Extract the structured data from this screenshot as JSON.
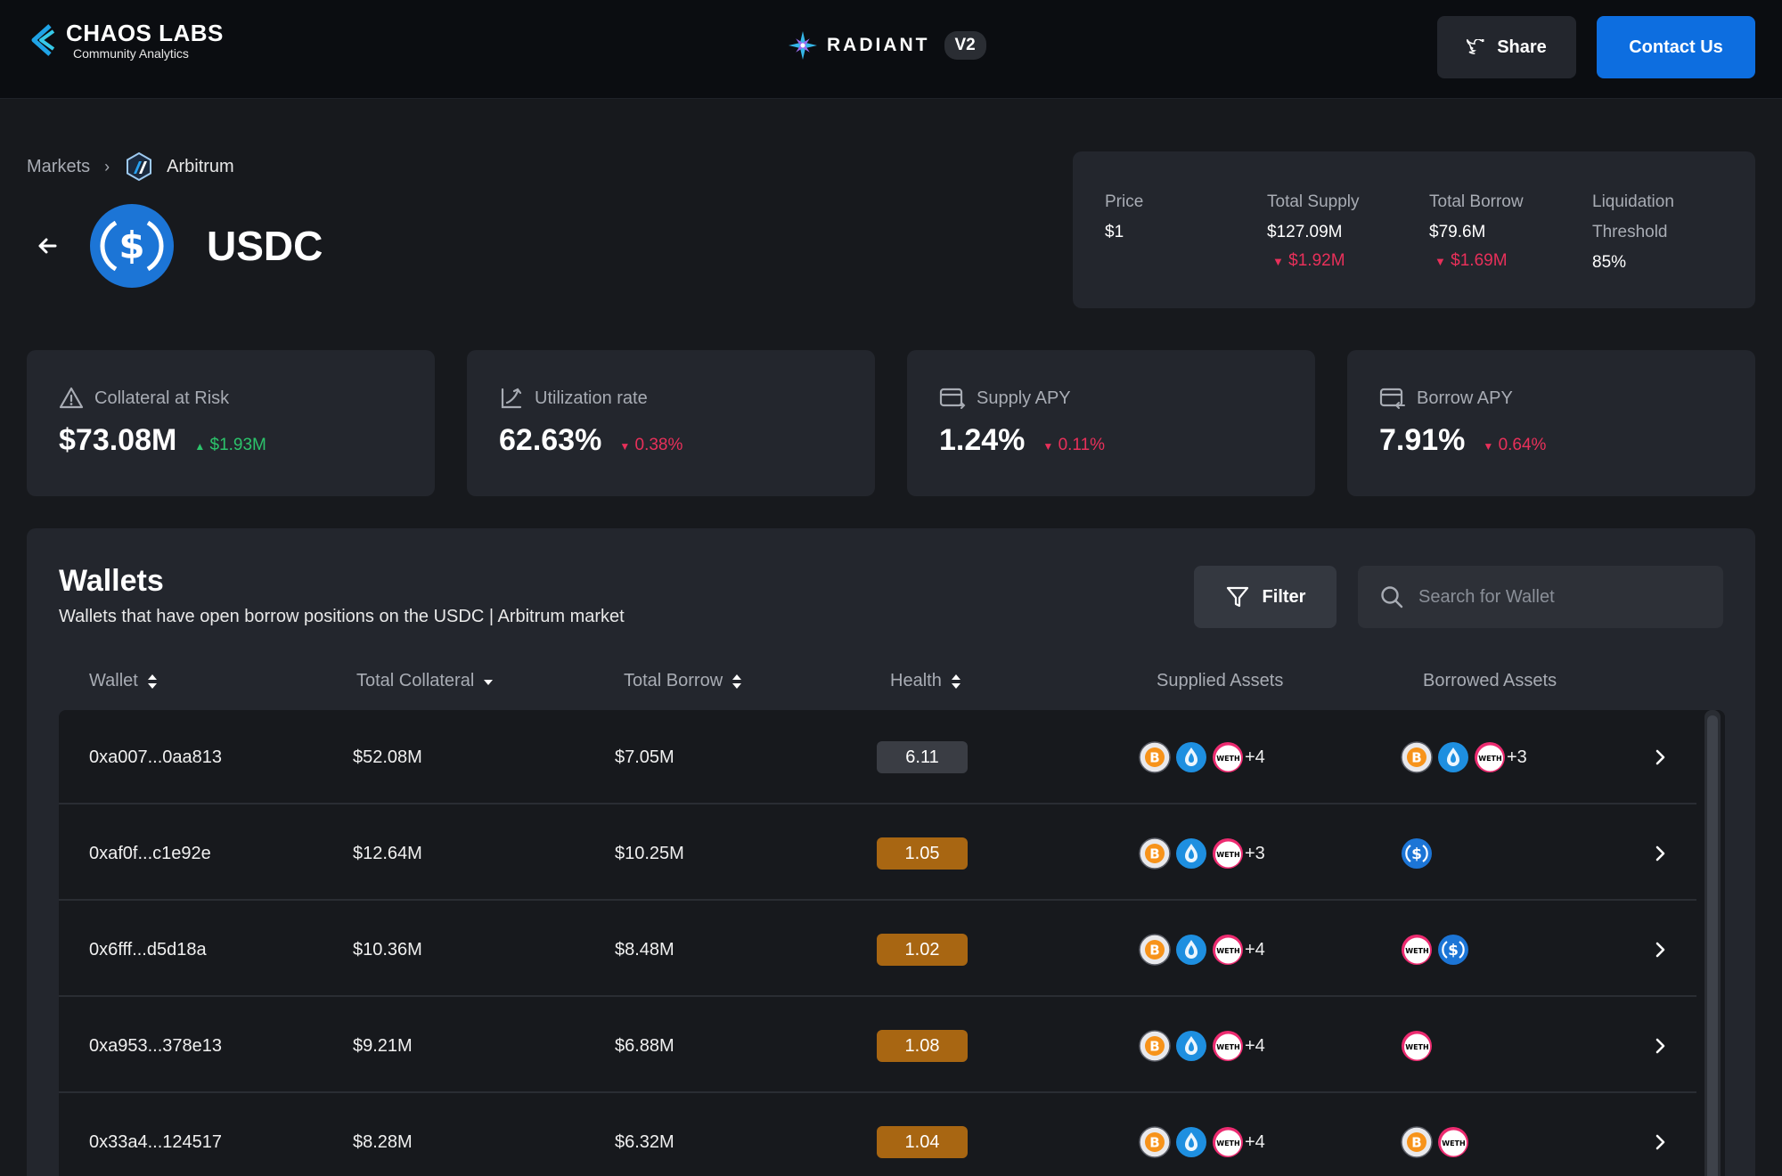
{
  "header": {
    "logo_title": "CHAOS LABS",
    "logo_subtitle": "Community Analytics",
    "protocol_name": "RADIANT",
    "protocol_version": "V2",
    "share_label": "Share",
    "contact_label": "Contact Us"
  },
  "breadcrumb": {
    "markets": "Markets",
    "network": "Arbitrum"
  },
  "asset": {
    "symbol": "USDC"
  },
  "summary": {
    "price_label": "Price",
    "price_value": "$1",
    "supply_label": "Total Supply",
    "supply_value": "$127.09M",
    "supply_delta": "$1.92M",
    "borrow_label": "Total Borrow",
    "borrow_value": "$79.6M",
    "borrow_delta": "$1.69M",
    "liq_label_1": "Liquidation",
    "liq_label_2": "Threshold",
    "liq_value": "85%"
  },
  "kpis": [
    {
      "label": "Collateral at Risk",
      "value": "$73.08M",
      "delta": "$1.93M",
      "direction": "up",
      "icon": "warning-icon"
    },
    {
      "label": "Utilization rate",
      "value": "62.63%",
      "delta": "0.38%",
      "direction": "down",
      "icon": "utilization-icon"
    },
    {
      "label": "Supply APY",
      "value": "1.24%",
      "delta": "0.11%",
      "direction": "down",
      "icon": "supply-card-icon"
    },
    {
      "label": "Borrow APY",
      "value": "7.91%",
      "delta": "0.64%",
      "direction": "down",
      "icon": "borrow-card-icon"
    }
  ],
  "wallets": {
    "title": "Wallets",
    "subtitle": "Wallets that have open borrow positions on the USDC | Arbitrum market",
    "filter_label": "Filter",
    "search_placeholder": "Search for Wallet",
    "columns": [
      "Wallet",
      "Total Collateral",
      "Total Borrow",
      "Health",
      "Supplied Assets",
      "Borrowed Assets"
    ],
    "rows": [
      {
        "wallet": "0xa007...0aa813",
        "collateral": "$52.08M",
        "borrow": "$7.05M",
        "health": "6.11",
        "health_state": "ok",
        "supplied": [
          "wbtc",
          "rdnt",
          "weth"
        ],
        "supplied_extra": "+4",
        "borrowed": [
          "wbtc",
          "rdnt",
          "weth"
        ],
        "borrowed_extra": "+3"
      },
      {
        "wallet": "0xaf0f...c1e92e",
        "collateral": "$12.64M",
        "borrow": "$10.25M",
        "health": "1.05",
        "health_state": "warn",
        "supplied": [
          "wbtc",
          "rdnt",
          "weth"
        ],
        "supplied_extra": "+3",
        "borrowed": [
          "usdc"
        ],
        "borrowed_extra": ""
      },
      {
        "wallet": "0x6fff...d5d18a",
        "collateral": "$10.36M",
        "borrow": "$8.48M",
        "health": "1.02",
        "health_state": "warn",
        "supplied": [
          "wbtc",
          "rdnt",
          "weth"
        ],
        "supplied_extra": "+4",
        "borrowed": [
          "weth",
          "usdc"
        ],
        "borrowed_extra": ""
      },
      {
        "wallet": "0xa953...378e13",
        "collateral": "$9.21M",
        "borrow": "$6.88M",
        "health": "1.08",
        "health_state": "warn",
        "supplied": [
          "wbtc",
          "rdnt",
          "weth"
        ],
        "supplied_extra": "+4",
        "borrowed": [
          "weth"
        ],
        "borrowed_extra": ""
      },
      {
        "wallet": "0x33a4...124517",
        "collateral": "$8.28M",
        "borrow": "$6.32M",
        "health": "1.04",
        "health_state": "warn",
        "supplied": [
          "wbtc",
          "rdnt",
          "weth"
        ],
        "supplied_extra": "+4",
        "borrowed": [
          "wbtc",
          "weth"
        ],
        "borrowed_extra": ""
      }
    ]
  },
  "colors": {
    "accent_blue": "#0d6ee0",
    "positive": "#2cc36b",
    "negative": "#e8305a",
    "health_warn": "#a86612"
  }
}
